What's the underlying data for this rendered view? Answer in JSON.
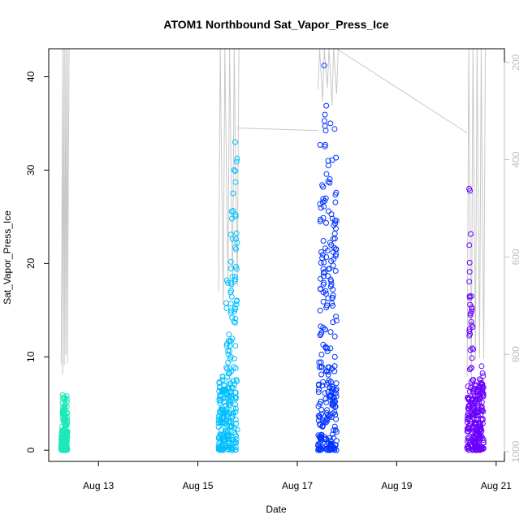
{
  "chart_data": {
    "type": "scatter",
    "title": "ATOM1 Northbound Sat_Vapor_Press_Ice",
    "xlabel": "Date",
    "ylabel": "Sat_Vapor_Press_Ice",
    "x_range_days": [
      "Aug 12",
      "Aug 21"
    ],
    "xlim": [
      "2016-08-12T00:00",
      "2016-08-21T04:00"
    ],
    "ylim": [
      -1.2,
      43
    ],
    "x_ticks": [
      {
        "date": "2016-08-13T00:00",
        "label": "Aug 13"
      },
      {
        "date": "2016-08-15T00:00",
        "label": "Aug 15"
      },
      {
        "date": "2016-08-17T00:00",
        "label": "Aug 17"
      },
      {
        "date": "2016-08-19T00:00",
        "label": "Aug 19"
      },
      {
        "date": "2016-08-21T00:00",
        "label": "Aug 21"
      }
    ],
    "y_ticks": [
      0,
      10,
      20,
      30,
      40
    ],
    "y2_axis": {
      "label": "",
      "reversed": true,
      "ylim": [
        1020,
        172
      ],
      "ticks": [
        200,
        400,
        600,
        800,
        1000
      ],
      "color": "#bdbdbd"
    },
    "series": [
      {
        "color": "#1de9b6",
        "start": "2016-08-12T06:00",
        "end": "2016-08-12T09:00",
        "y_min": 0,
        "y_max": 6.0,
        "points": [
          [
            "2016-08-12T06:00",
            0.3
          ],
          [
            "2016-08-12T06:20",
            2.5
          ],
          [
            "2016-08-12T06:40",
            5.9
          ],
          [
            "2016-08-12T07:00",
            4.2
          ],
          [
            "2016-08-12T07:20",
            1.1
          ],
          [
            "2016-08-12T07:40",
            5.7
          ],
          [
            "2016-08-12T08:00",
            3.4
          ],
          [
            "2016-08-12T08:20",
            0.6
          ],
          [
            "2016-08-12T08:40",
            5.8
          ],
          [
            "2016-08-12T09:00",
            2.0
          ]
        ]
      },
      {
        "color": "#00bfff",
        "start": "2016-08-15T10:00",
        "end": "2016-08-15T19:00",
        "y_min": 0,
        "y_max": 33.0,
        "points": [
          [
            "2016-08-15T10:00",
            0.4
          ],
          [
            "2016-08-15T11:00",
            5.8
          ],
          [
            "2016-08-15T12:00",
            3.0
          ],
          [
            "2016-08-15T13:00",
            6.5
          ],
          [
            "2016-08-15T14:00",
            18.2
          ],
          [
            "2016-08-15T15:00",
            12.4
          ],
          [
            "2016-08-15T16:00",
            23.1
          ],
          [
            "2016-08-15T17:00",
            27.5
          ],
          [
            "2016-08-15T17:30",
            30.0
          ],
          [
            "2016-08-15T18:00",
            33.0
          ],
          [
            "2016-08-15T19:00",
            2.2
          ]
        ]
      },
      {
        "color": "#0033ff",
        "start": "2016-08-17T10:00",
        "end": "2016-08-17T19:00",
        "y_min": 0,
        "y_max": 41.2,
        "points": [
          [
            "2016-08-17T10:00",
            0.5
          ],
          [
            "2016-08-17T11:00",
            32.7
          ],
          [
            "2016-08-17T12:00",
            28.4
          ],
          [
            "2016-08-17T13:00",
            41.2
          ],
          [
            "2016-08-17T14:00",
            36.9
          ],
          [
            "2016-08-17T15:00",
            30.5
          ],
          [
            "2016-08-17T16:00",
            35.0
          ],
          [
            "2016-08-17T17:00",
            24.8
          ],
          [
            "2016-08-17T18:00",
            34.4
          ],
          [
            "2016-08-17T19:00",
            1.0
          ]
        ]
      },
      {
        "color": "#6a00ff",
        "start": "2016-08-20T10:00",
        "end": "2016-08-20T18:00",
        "y_min": 0,
        "y_max": 28.0,
        "points": [
          [
            "2016-08-20T10:00",
            0.3
          ],
          [
            "2016-08-20T11:00",
            28.0
          ],
          [
            "2016-08-20T12:00",
            16.5
          ],
          [
            "2016-08-20T13:00",
            6.5
          ],
          [
            "2016-08-20T14:00",
            5.0
          ],
          [
            "2016-08-20T15:00",
            4.1
          ],
          [
            "2016-08-20T16:00",
            7.6
          ],
          [
            "2016-08-20T17:00",
            9.0
          ],
          [
            "2016-08-20T18:00",
            0.8
          ]
        ]
      }
    ],
    "pressure_trace": {
      "color": "#c8c8c8",
      "description_axis": "right",
      "segments": [
        {
          "start": "2016-08-12T06:00",
          "end": "2016-08-12T09:00",
          "p_min": 175,
          "p_max": 860
        },
        {
          "start": "2016-08-15T10:00",
          "end": "2016-08-15T19:00",
          "p_min": 175,
          "p_max": 710
        },
        {
          "start": "2016-08-17T10:00",
          "end": "2016-08-17T19:00",
          "p_min": 175,
          "p_max": 300
        },
        {
          "start": "2016-08-20T10:00",
          "end": "2016-08-20T18:00",
          "p_min": 175,
          "p_max": 860
        }
      ],
      "connectors": [
        [
          [
            "2016-08-15T19:00",
            335
          ],
          [
            "2016-08-17T10:00",
            340
          ]
        ],
        [
          [
            "2016-08-17T19:00",
            172
          ],
          [
            "2016-08-20T10:00",
            345
          ]
        ]
      ]
    }
  }
}
